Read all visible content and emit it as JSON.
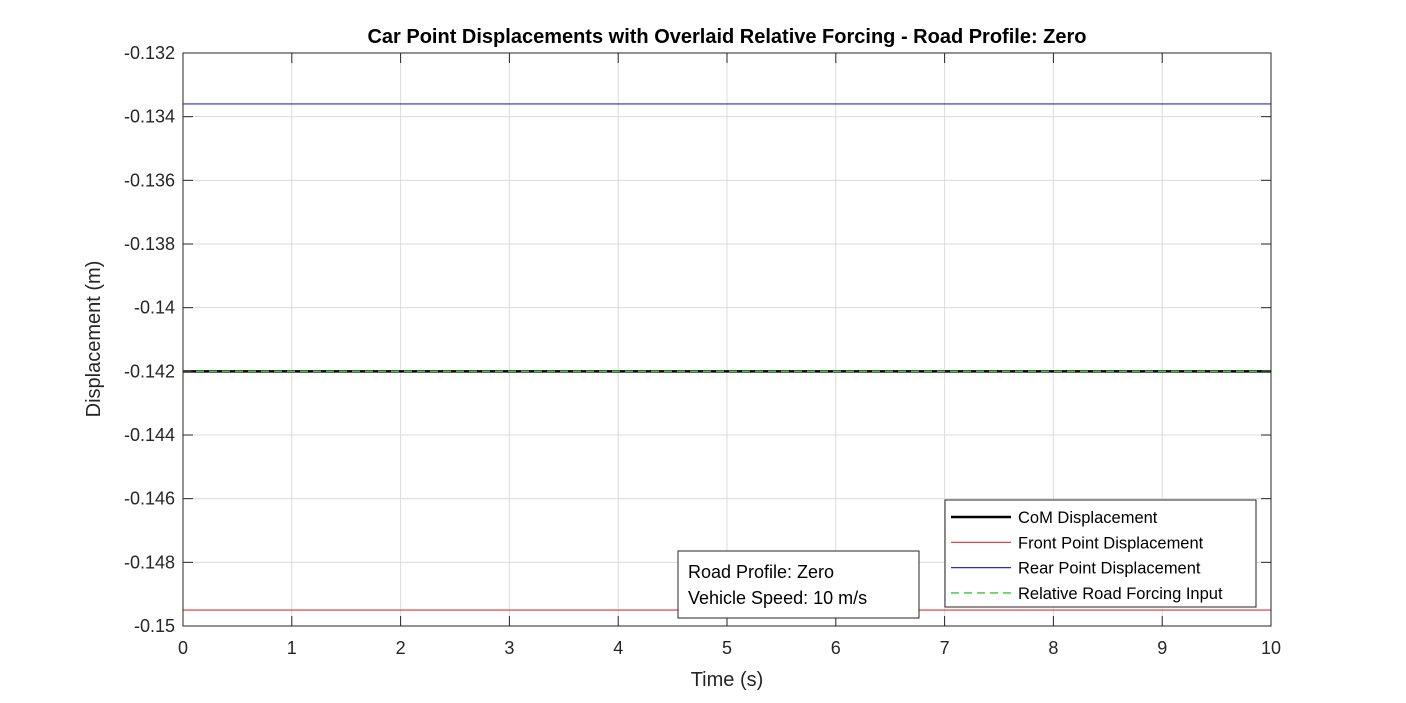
{
  "chart_data": {
    "type": "line",
    "title": "Car Point Displacements with Overlaid Relative Forcing - Road Profile: Zero",
    "xlabel": "Time (s)",
    "ylabel": "Displacement (m)",
    "xlim": [
      0,
      10
    ],
    "ylim": [
      -0.15,
      -0.132
    ],
    "x_ticks": [
      0,
      1,
      2,
      3,
      4,
      5,
      6,
      7,
      8,
      9,
      10
    ],
    "x_tick_labels": [
      "0",
      "1",
      "2",
      "3",
      "4",
      "5",
      "6",
      "7",
      "8",
      "9",
      "10"
    ],
    "y_ticks": [
      -0.132,
      -0.134,
      -0.136,
      -0.138,
      -0.14,
      -0.142,
      -0.144,
      -0.146,
      -0.148,
      -0.15
    ],
    "y_tick_labels": [
      "-0.132",
      "-0.134",
      "-0.136",
      "-0.138",
      "-0.14",
      "-0.142",
      "-0.144",
      "-0.146",
      "-0.148",
      "-0.15"
    ],
    "grid": true,
    "legend_position": "bottom-right",
    "series": [
      {
        "name": "CoM Displacement",
        "color": "#000000",
        "style": "solid",
        "width": 2.5,
        "x": [
          0,
          10
        ],
        "y": [
          -0.142,
          -0.142
        ]
      },
      {
        "name": "Front Point Displacement",
        "color": "#e03030",
        "style": "solid",
        "width": 1.2,
        "x": [
          0,
          10
        ],
        "y": [
          -0.1495,
          -0.1495
        ]
      },
      {
        "name": "Rear Point Displacement",
        "color": "#2a2ad6",
        "style": "solid",
        "width": 1.2,
        "x": [
          0,
          10
        ],
        "y": [
          -0.1336,
          -0.1336
        ]
      },
      {
        "name": "Relative Road Forcing Input",
        "color": "#33cc33",
        "style": "dashed",
        "width": 1.4,
        "x": [
          0,
          10
        ],
        "y": [
          -0.142,
          -0.142
        ]
      }
    ],
    "annotation": {
      "lines": [
        "Road Profile: Zero",
        "Vehicle Speed: 10 m/s"
      ]
    }
  }
}
